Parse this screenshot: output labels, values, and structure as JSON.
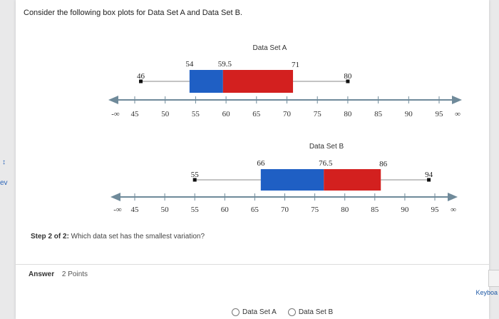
{
  "question": "Consider the following box plots for Data Set A and Data Set B.",
  "step": {
    "bold": "Step 2 of 2:",
    "text": " Which data set has the smallest variation?"
  },
  "answer": {
    "label": "Answer",
    "points": "2 Points"
  },
  "options": [
    "Data Set A",
    "Data Set B"
  ],
  "left_edge": {
    "mark": "↕",
    "text": "ev"
  },
  "keyboard": "Keyboa",
  "chart_data": [
    {
      "type": "boxplot",
      "title": "Data Set A",
      "min": 46,
      "q1": 54,
      "median": 59.5,
      "q3": 71,
      "max": 80,
      "labels": {
        "min": "46",
        "q1": "54",
        "median": "59.5",
        "q3": "71",
        "max": "80"
      },
      "ticks": [
        "-∞",
        "45",
        "50",
        "55",
        "60",
        "65",
        "70",
        "75",
        "80",
        "85",
        "90",
        "95",
        "∞"
      ],
      "colors": {
        "lower": "#1f5fc4",
        "upper": "#d3201f"
      }
    },
    {
      "type": "boxplot",
      "title": "Data Set B",
      "min": 55,
      "q1": 66,
      "median": 76.5,
      "q3": 86,
      "max": 94,
      "labels": {
        "min": "55",
        "q1": "66",
        "median": "76.5",
        "q3": "86",
        "max": "94"
      },
      "ticks": [
        "-∞",
        "45",
        "50",
        "55",
        "60",
        "65",
        "70",
        "75",
        "80",
        "85",
        "90",
        "95",
        "∞"
      ],
      "colors": {
        "lower": "#1f5fc4",
        "upper": "#d3201f"
      }
    }
  ]
}
